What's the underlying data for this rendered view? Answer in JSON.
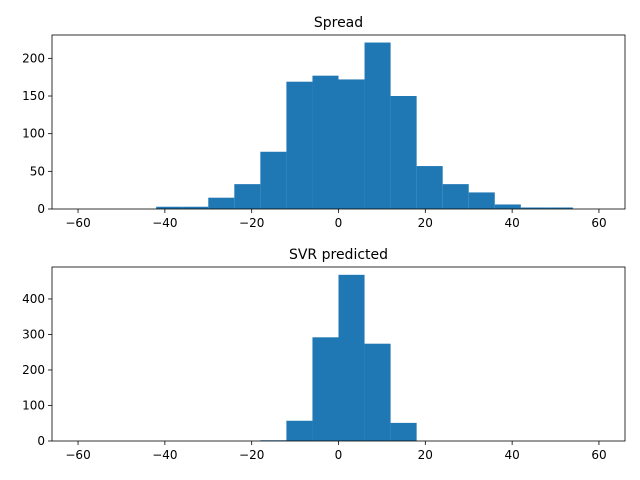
{
  "chart_data": [
    {
      "type": "bar",
      "title": "Spread",
      "xlabel": "",
      "ylabel": "",
      "xlim": [
        -66,
        66
      ],
      "ylim": [
        0,
        231
      ],
      "xticks": [
        -60,
        -40,
        -20,
        0,
        20,
        40,
        60
      ],
      "xtick_labels": [
        "−60",
        "−40",
        "−20",
        "0",
        "20",
        "40",
        "60"
      ],
      "yticks": [
        0,
        50,
        100,
        150,
        200
      ],
      "ytick_labels": [
        "0",
        "50",
        "100",
        "150",
        "200"
      ],
      "bin_edges": [
        -60,
        -54,
        -48,
        -42,
        -36,
        -30,
        -24,
        -18,
        -12,
        -6,
        0,
        6,
        12,
        18,
        24,
        30,
        36,
        42,
        48,
        54,
        60
      ],
      "values": [
        0,
        0,
        0,
        3,
        3,
        15,
        33,
        76,
        169,
        177,
        172,
        221,
        150,
        57,
        33,
        22,
        6,
        2,
        2,
        0
      ],
      "color": "#1f77b4",
      "grid": false
    },
    {
      "type": "bar",
      "title": "SVR predicted",
      "xlabel": "",
      "ylabel": "",
      "xlim": [
        -66,
        66
      ],
      "ylim": [
        0,
        490
      ],
      "xticks": [
        -60,
        -40,
        -20,
        0,
        20,
        40,
        60
      ],
      "xtick_labels": [
        "−60",
        "−40",
        "−20",
        "0",
        "20",
        "40",
        "60"
      ],
      "yticks": [
        0,
        100,
        200,
        300,
        400
      ],
      "ytick_labels": [
        "0",
        "100",
        "200",
        "300",
        "400"
      ],
      "bin_edges": [
        -60,
        -54,
        -48,
        -42,
        -36,
        -30,
        -24,
        -18,
        -12,
        -6,
        0,
        6,
        12,
        18,
        24,
        30,
        36,
        42,
        48,
        54,
        60
      ],
      "values": [
        0,
        0,
        0,
        0,
        0,
        0,
        0,
        2,
        57,
        292,
        468,
        274,
        51,
        0,
        0,
        0,
        0,
        0,
        0,
        0
      ],
      "color": "#1f77b4",
      "grid": false
    }
  ]
}
